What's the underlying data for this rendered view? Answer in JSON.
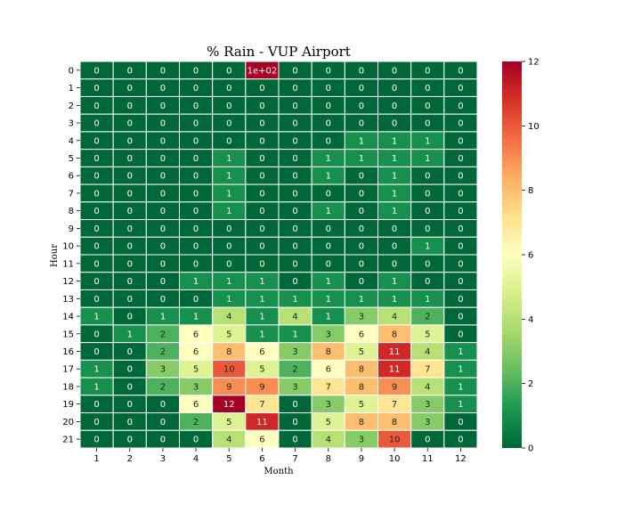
{
  "chart_data": {
    "type": "heatmap",
    "title": "% Rain - VUP Airport",
    "xlabel": "Month",
    "ylabel": "Hour",
    "x_categories": [
      "1",
      "2",
      "3",
      "4",
      "5",
      "6",
      "7",
      "8",
      "9",
      "10",
      "11",
      "12"
    ],
    "y_categories": [
      "0",
      "1",
      "2",
      "3",
      "4",
      "5",
      "6",
      "7",
      "8",
      "9",
      "10",
      "11",
      "12",
      "13",
      "14",
      "15",
      "16",
      "17",
      "18",
      "19",
      "20",
      "21"
    ],
    "values": [
      [
        0,
        0,
        0,
        0,
        0,
        100,
        0,
        0,
        0,
        0,
        0,
        0
      ],
      [
        0,
        0,
        0,
        0,
        0,
        0,
        0,
        0,
        0,
        0,
        0,
        0
      ],
      [
        0,
        0,
        0,
        0,
        0,
        0,
        0,
        0,
        0,
        0,
        0,
        0
      ],
      [
        0,
        0,
        0,
        0,
        0,
        0,
        0,
        0,
        0,
        0,
        0,
        0
      ],
      [
        0,
        0,
        0,
        0,
        0,
        0,
        0,
        0,
        1,
        1,
        1,
        0
      ],
      [
        0,
        0,
        0,
        0,
        1,
        0,
        0,
        1,
        1,
        1,
        1,
        0
      ],
      [
        0,
        0,
        0,
        0,
        1,
        0,
        0,
        1,
        0,
        1,
        0,
        0
      ],
      [
        0,
        0,
        0,
        0,
        1,
        0,
        0,
        0,
        0,
        1,
        0,
        0
      ],
      [
        0,
        0,
        0,
        0,
        1,
        0,
        0,
        1,
        0,
        1,
        0,
        0
      ],
      [
        0,
        0,
        0,
        0,
        0,
        0,
        0,
        0,
        0,
        0,
        0,
        0
      ],
      [
        0,
        0,
        0,
        0,
        0,
        0,
        0,
        0,
        0,
        0,
        1,
        0
      ],
      [
        0,
        0,
        0,
        0,
        0,
        0,
        0,
        0,
        0,
        0,
        0,
        0
      ],
      [
        0,
        0,
        0,
        1,
        1,
        1,
        0,
        1,
        0,
        1,
        0,
        0
      ],
      [
        0,
        0,
        0,
        0,
        1,
        1,
        1,
        1,
        1,
        1,
        1,
        0
      ],
      [
        1,
        0,
        1,
        1,
        4,
        1,
        4,
        1,
        3,
        4,
        2,
        0
      ],
      [
        0,
        1,
        2,
        6,
        5,
        1,
        1,
        3,
        6,
        8,
        5,
        0
      ],
      [
        0,
        0,
        2,
        6,
        8,
        6,
        3,
        8,
        5,
        11,
        4,
        1
      ],
      [
        1,
        0,
        3,
        5,
        10,
        5,
        2,
        6,
        8,
        11,
        7,
        1
      ],
      [
        1,
        0,
        2,
        3,
        9,
        9,
        3,
        7,
        8,
        9,
        4,
        1
      ],
      [
        0,
        0,
        0,
        6,
        12,
        7,
        0,
        3,
        5,
        7,
        3,
        1
      ],
      [
        0,
        0,
        0,
        2,
        5,
        11,
        0,
        5,
        8,
        8,
        3,
        0
      ],
      [
        0,
        0,
        0,
        0,
        4,
        6,
        0,
        4,
        3,
        10,
        0,
        0
      ]
    ],
    "value_labels": {
      "0-5": "1e+02"
    },
    "colormap": "RdYlGn_r",
    "color_range": [
      0,
      12
    ],
    "colorbar_ticks": [
      "0",
      "2",
      "4",
      "6",
      "8",
      "10",
      "12"
    ],
    "grid": false,
    "legend": "colorbar-right"
  }
}
